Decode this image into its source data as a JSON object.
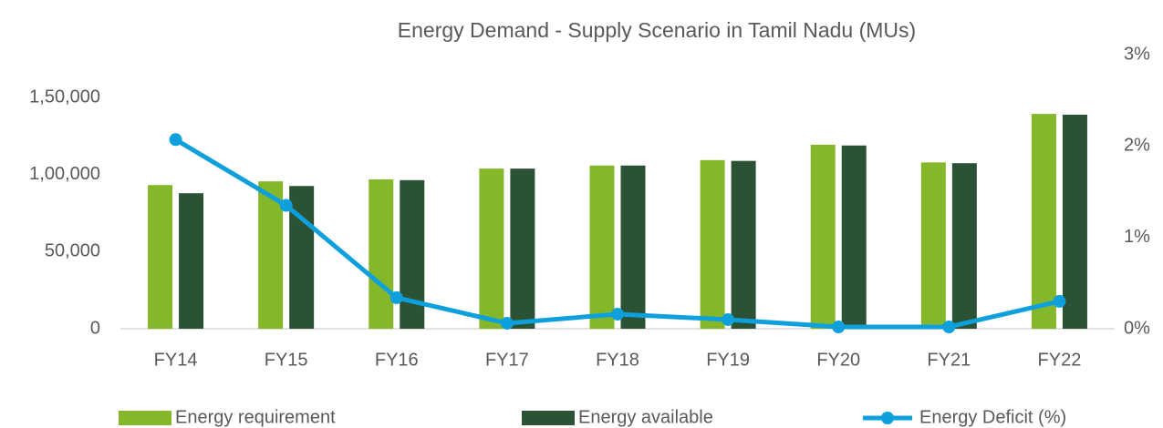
{
  "chart_data": {
    "type": "bar_line",
    "title": "Energy Demand - Supply Scenario in Tamil Nadu (MUs)",
    "categories": [
      "FY14",
      "FY15",
      "FY16",
      "FY17",
      "FY18",
      "FY19",
      "FY20",
      "FY21",
      "FY22"
    ],
    "series": [
      {
        "name": "Energy requirement",
        "color": "#84b82a",
        "type": "bar",
        "values": [
          93300,
          95700,
          97000,
          104000,
          106000,
          109500,
          119500,
          108000,
          139500
        ]
      },
      {
        "name": "Energy available",
        "color": "#2b5234",
        "type": "bar",
        "values": [
          88000,
          92700,
          96500,
          104000,
          106000,
          109000,
          119000,
          107500,
          139000
        ]
      },
      {
        "name": "Energy Deficit (%)",
        "color": "#0ea0dc",
        "type": "line",
        "axis": "y2",
        "values": [
          2.07,
          1.35,
          0.34,
          0.06,
          0.16,
          0.1,
          0.02,
          0.02,
          0.3
        ]
      }
    ],
    "ylim": [
      0,
      178000
    ],
    "yticks": [
      {
        "value": 0,
        "label": "0"
      },
      {
        "value": 50000,
        "label": "50,000"
      },
      {
        "value": 100000,
        "label": "1,00,000"
      },
      {
        "value": 150000,
        "label": "1,50,000"
      }
    ],
    "y2lim": [
      0,
      3
    ],
    "y2ticks": [
      {
        "value": 0,
        "label": "0%"
      },
      {
        "value": 1,
        "label": "1%"
      },
      {
        "value": 2,
        "label": "2%"
      },
      {
        "value": 3,
        "label": "3%"
      }
    ],
    "legend": "bottom"
  }
}
